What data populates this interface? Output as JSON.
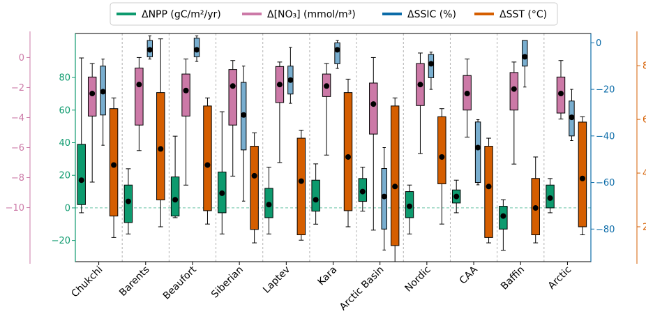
{
  "chart_data": {
    "type": "boxplot",
    "categories": [
      "Chukchi",
      "Barents",
      "Beaufort",
      "Siberian",
      "Laptev",
      "Kara",
      "Arctic Basin",
      "Nordic",
      "CAA",
      "Baffin",
      "Arctic"
    ],
    "legend": {
      "placement": "top-center",
      "entries": [
        {
          "label": "ΔNPP (gC/m²/yr)",
          "color": "#0d9a6e"
        },
        {
          "label": "Δ[NO₃] (mmol/m³)",
          "color": "#cc79a7"
        },
        {
          "label": "ΔSSIC (%)",
          "color": "#0b6ba8"
        },
        {
          "label": "ΔSST (°C)",
          "color": "#d55e00"
        }
      ]
    },
    "axes": {
      "npp": {
        "color": "#0d9a6e",
        "ylim": [
          -33,
          107
        ],
        "ticks": [
          -20,
          0,
          20,
          40,
          60,
          80
        ]
      },
      "no3": {
        "color": "#cc79a7",
        "ylim": [
          -13.6,
          1.6
        ],
        "ticks": [
          -10,
          -8,
          -6,
          -4,
          -2,
          0
        ]
      },
      "ssic": {
        "color": "#0b6ba8",
        "ylim": [
          -94,
          4
        ],
        "ticks": [
          -80,
          -60,
          -40,
          -20,
          0
        ]
      },
      "sst": {
        "color": "#d55e00",
        "ylim": [
          0.7,
          9.2
        ],
        "ticks": [
          2,
          4,
          6,
          8
        ]
      }
    },
    "zero_line": {
      "axis": "npp",
      "value": 0,
      "style": "dashed",
      "color": "#66c2a5"
    },
    "grid": {
      "vertical_separators": true,
      "horizontal": false
    },
    "series": [
      {
        "name": "ΔNPP",
        "axis": "npp",
        "color": "#0d9a6e",
        "boxes": [
          {
            "whislo": -3,
            "q1": 2,
            "median": 17,
            "q3": 39,
            "whishi": 92
          },
          {
            "whislo": -16,
            "q1": -9,
            "median": 4,
            "q3": 14,
            "whishi": 24
          },
          {
            "whislo": -6,
            "q1": -5,
            "median": 5,
            "q3": 19,
            "whishi": 44
          },
          {
            "whislo": -16,
            "q1": -3,
            "median": 9,
            "q3": 22,
            "whishi": 59
          },
          {
            "whislo": -16,
            "q1": -6,
            "median": 2,
            "q3": 12,
            "whishi": 25
          },
          {
            "whislo": -10,
            "q1": -2,
            "median": 5,
            "q3": 17,
            "whishi": 27
          },
          {
            "whislo": -2,
            "q1": 4,
            "median": 10,
            "q3": 18,
            "whishi": 25
          },
          {
            "whislo": -16,
            "q1": -6,
            "median": 1,
            "q3": 10,
            "whishi": 14
          },
          {
            "whislo": -3,
            "q1": 3,
            "median": 7,
            "q3": 11,
            "whishi": 17
          },
          {
            "whislo": -26,
            "q1": -13,
            "median": -5,
            "q3": 1,
            "whishi": 5
          },
          {
            "whislo": -3,
            "q1": 0,
            "median": 6,
            "q3": 14,
            "whishi": 18
          }
        ]
      },
      {
        "name": "Δ[NO₃]",
        "axis": "no3",
        "color": "#cc79a7",
        "boxes": [
          {
            "whislo": -8.3,
            "q1": -3.9,
            "median": -2.4,
            "q3": -1.3,
            "whishi": -0.4
          },
          {
            "whislo": -6.2,
            "q1": -4.5,
            "median": -1.8,
            "q3": -0.7,
            "whishi": 0.0
          },
          {
            "whislo": -8.5,
            "q1": -3.9,
            "median": -2.2,
            "q3": -1.1,
            "whishi": -0.1
          },
          {
            "whislo": -7.9,
            "q1": -4.5,
            "median": -1.9,
            "q3": -0.8,
            "whishi": -0.2
          },
          {
            "whislo": -7.0,
            "q1": -3.0,
            "median": -1.8,
            "q3": -0.6,
            "whishi": -0.3
          },
          {
            "whislo": -6.5,
            "q1": -2.6,
            "median": -1.9,
            "q3": -1.1,
            "whishi": -0.4
          },
          {
            "whislo": -11.5,
            "q1": -5.1,
            "median": -3.1,
            "q3": -1.7,
            "whishi": 0.0
          },
          {
            "whislo": -6.4,
            "q1": -3.2,
            "median": -1.8,
            "q3": -0.4,
            "whishi": 0.3
          },
          {
            "whislo": -5.3,
            "q1": -3.5,
            "median": -2.4,
            "q3": -1.2,
            "whishi": -0.1
          },
          {
            "whislo": -7.1,
            "q1": -3.5,
            "median": -2.1,
            "q3": -1.0,
            "whishi": -0.3
          },
          {
            "whislo": -4.1,
            "q1": -3.7,
            "median": -2.4,
            "q3": -1.3,
            "whishi": -0.2
          }
        ]
      },
      {
        "name": "ΔSSIC",
        "axis": "ssic",
        "color": "#0b6ba8",
        "boxes": [
          {
            "whislo": -44,
            "q1": -31,
            "median": -21,
            "q3": -10,
            "whishi": -7
          },
          {
            "whislo": -7,
            "q1": -6,
            "median": -3,
            "q3": 1,
            "whishi": 3
          },
          {
            "whislo": -8,
            "q1": -6,
            "median": -3,
            "q3": 2,
            "whishi": 3
          },
          {
            "whislo": -68,
            "q1": -46,
            "median": -31,
            "q3": -17,
            "whishi": -10
          },
          {
            "whislo": -26,
            "q1": -22,
            "median": -16,
            "q3": -10,
            "whishi": -2
          },
          {
            "whislo": -11,
            "q1": -9,
            "median": -3,
            "q3": 0,
            "whishi": 1
          },
          {
            "whislo": -89,
            "q1": -80,
            "median": -66,
            "q3": -54,
            "whishi": -45
          },
          {
            "whislo": -20,
            "q1": -15,
            "median": -9,
            "q3": -5,
            "whishi": -4
          },
          {
            "whislo": -61,
            "q1": -60,
            "median": -45,
            "q3": -34,
            "whishi": -33
          },
          {
            "whislo": -19,
            "q1": -10,
            "median": -6,
            "q3": 1,
            "whishi": 1
          },
          {
            "whislo": -42,
            "q1": -40,
            "median": -32,
            "q3": -25,
            "whishi": -20
          }
        ]
      },
      {
        "name": "ΔSST",
        "axis": "sst",
        "color": "#d55e00",
        "boxes": [
          {
            "whislo": 1.6,
            "q1": 2.4,
            "median": 4.3,
            "q3": 6.4,
            "whishi": 6.8
          },
          {
            "whislo": 2.0,
            "q1": 3.0,
            "median": 4.9,
            "q3": 7.0,
            "whishi": 9.0
          },
          {
            "whislo": 2.1,
            "q1": 2.6,
            "median": 4.3,
            "q3": 6.5,
            "whishi": 6.8
          },
          {
            "whislo": 1.4,
            "q1": 1.9,
            "median": 3.9,
            "q3": 5.0,
            "whishi": 5.5
          },
          {
            "whislo": 1.5,
            "q1": 1.7,
            "median": 3.7,
            "q3": 5.3,
            "whishi": 5.6
          },
          {
            "whislo": 2.0,
            "q1": 2.6,
            "median": 4.6,
            "q3": 7.0,
            "whishi": 7.5
          },
          {
            "whislo": 0.7,
            "q1": 1.3,
            "median": 3.5,
            "q3": 6.5,
            "whishi": 6.8
          },
          {
            "whislo": 2.1,
            "q1": 3.6,
            "median": 4.6,
            "q3": 6.1,
            "whishi": 6.4
          },
          {
            "whislo": 1.4,
            "q1": 1.6,
            "median": 3.5,
            "q3": 5.0,
            "whishi": 5.3
          },
          {
            "whislo": 1.4,
            "q1": 1.7,
            "median": 2.7,
            "q3": 3.8,
            "whishi": 4.6
          },
          {
            "whislo": 1.7,
            "q1": 2.0,
            "median": 3.8,
            "q3": 5.9,
            "whishi": 6.1
          }
        ]
      }
    ]
  }
}
